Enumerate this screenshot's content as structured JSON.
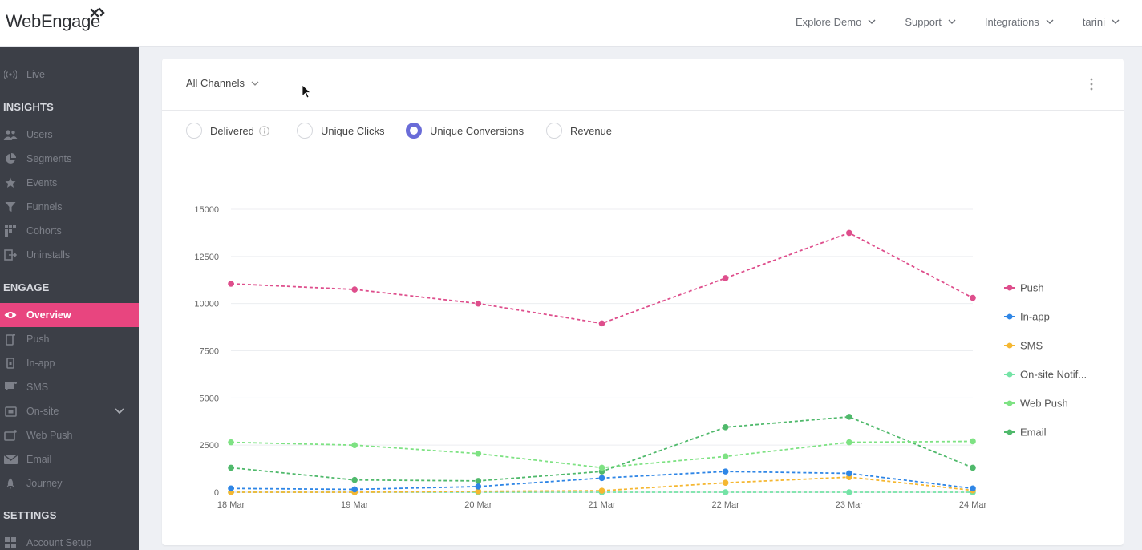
{
  "app": {
    "logo_text": "WebEngage"
  },
  "topnav": {
    "items": [
      {
        "label": "Explore Demo"
      },
      {
        "label": "Support"
      },
      {
        "label": "Integrations"
      },
      {
        "label": "tarini"
      }
    ]
  },
  "sidebar": {
    "live": "Live",
    "insights_heading": "INSIGHTS",
    "insights": [
      {
        "label": "Users",
        "icon": "users-icon"
      },
      {
        "label": "Segments",
        "icon": "pie-icon"
      },
      {
        "label": "Events",
        "icon": "star-icon"
      },
      {
        "label": "Funnels",
        "icon": "funnel-icon"
      },
      {
        "label": "Cohorts",
        "icon": "grid-icon"
      },
      {
        "label": "Uninstalls",
        "icon": "uninstall-icon"
      }
    ],
    "engage_heading": "ENGAGE",
    "engage": [
      {
        "label": "Overview",
        "icon": "eye-icon",
        "active": true
      },
      {
        "label": "Push",
        "icon": "phone-icon"
      },
      {
        "label": "In-app",
        "icon": "tablet-icon"
      },
      {
        "label": "SMS",
        "icon": "chat-icon"
      },
      {
        "label": "On-site",
        "icon": "browser-icon"
      },
      {
        "label": "Web Push",
        "icon": "webpush-icon"
      },
      {
        "label": "Email",
        "icon": "mail-icon"
      },
      {
        "label": "Journey",
        "icon": "rocket-icon"
      }
    ],
    "settings_heading": "SETTINGS",
    "settings": [
      {
        "label": "Account Setup",
        "icon": "grid-icon"
      }
    ],
    "accent": "#e8457f"
  },
  "card": {
    "channel_select": "All Channels",
    "metrics": [
      {
        "label": "Delivered",
        "selected": false
      },
      {
        "label": "Unique Clicks",
        "selected": false
      },
      {
        "label": "Unique Conversions",
        "selected": true
      },
      {
        "label": "Revenue",
        "selected": false
      }
    ]
  },
  "chart_data": {
    "type": "line",
    "categories": [
      "18 Mar",
      "19 Mar",
      "20 Mar",
      "21 Mar",
      "22 Mar",
      "23 Mar",
      "24 Mar"
    ],
    "ylim": [
      0,
      15000
    ],
    "yticks": [
      0,
      2500,
      5000,
      7500,
      10000,
      12500,
      15000
    ],
    "grid": true,
    "legend_position": "right",
    "series": [
      {
        "name": "Push",
        "color": "#de4e8c",
        "values": [
          11050,
          10750,
          10000,
          8950,
          11350,
          13750,
          10300
        ]
      },
      {
        "name": "In-app",
        "color": "#2f86e6",
        "values": [
          200,
          150,
          300,
          750,
          1100,
          1000,
          200
        ]
      },
      {
        "name": "SMS",
        "color": "#f5b731",
        "values": [
          0,
          0,
          50,
          80,
          500,
          800,
          100
        ]
      },
      {
        "name": "On-site Notif...",
        "color": "#74e3a6",
        "values": [
          0,
          0,
          0,
          0,
          0,
          0,
          0
        ]
      },
      {
        "name": "Web Push",
        "color": "#7ee283",
        "values": [
          2650,
          2500,
          2050,
          1300,
          1900,
          2650,
          2700
        ]
      },
      {
        "name": "Email",
        "color": "#4fb96b",
        "values": [
          1300,
          650,
          600,
          1100,
          3450,
          4000,
          1300
        ]
      }
    ]
  }
}
